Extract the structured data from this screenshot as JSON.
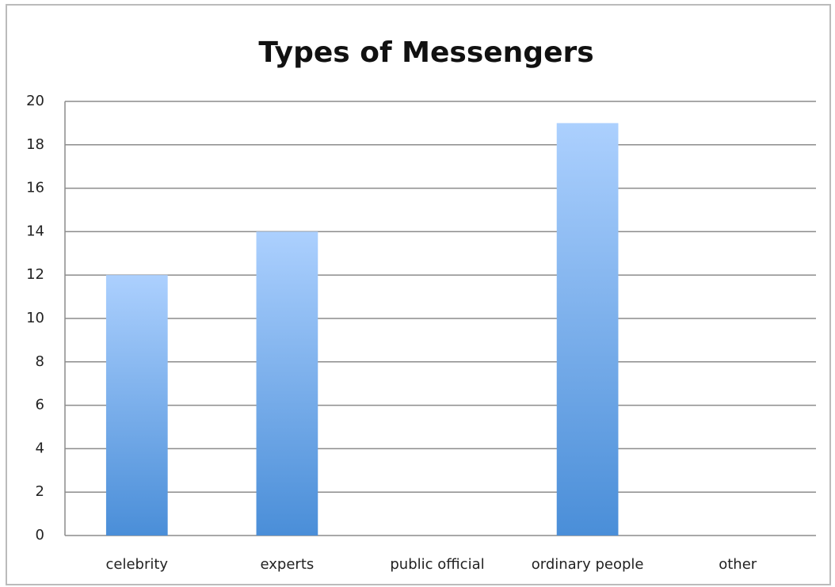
{
  "chart_data": {
    "type": "bar",
    "title": "Types of Messengers",
    "categories": [
      "celebrity",
      "experts",
      "public official",
      "ordinary people",
      "other"
    ],
    "values": [
      12,
      14,
      0,
      19,
      0
    ],
    "color": [
      "#acd0fe",
      "#4a8ed8"
    ],
    "ylim": [
      0,
      20
    ],
    "yticks": [
      0,
      2,
      4,
      6,
      8,
      10,
      12,
      14,
      16,
      18,
      20
    ],
    "grid": true
  }
}
